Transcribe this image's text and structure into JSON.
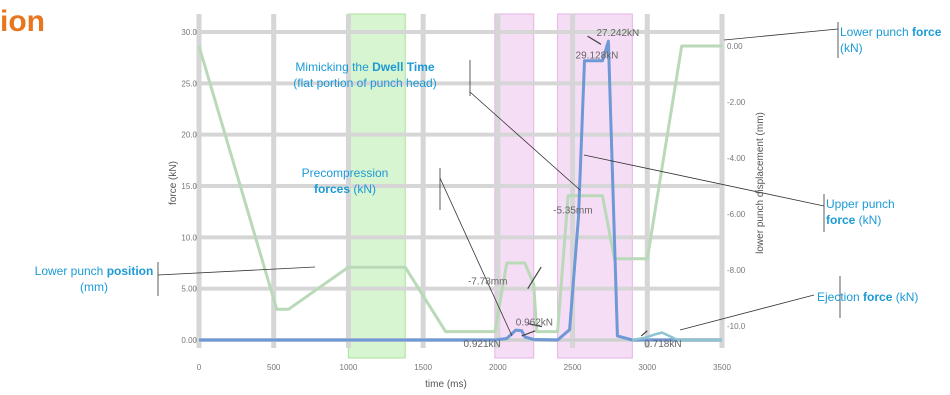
{
  "page": {
    "title_fragment": "ion"
  },
  "colors": {
    "title": "#e8761e",
    "callout_text": "#1b9ad6",
    "dwell_band": "#d7f5d0",
    "precomp_band": "#f6ddf6",
    "main_band": "#f6ddf6",
    "position_line": "#b9d9b8",
    "force_line": "#6f98d6",
    "ejection_line": "#8cc4cf",
    "grid": "#d6d6d6",
    "annotation": "#666666"
  },
  "chart_data": {
    "type": "line",
    "title": "",
    "xlabel": "time (ms)",
    "ylabel": "force (kN)",
    "ylabel_right": "lower punch displacement (mm)",
    "xlim": [
      0,
      3500
    ],
    "ylim": [
      0,
      30
    ],
    "ylim_right": [
      -10.5,
      0.5
    ],
    "x_ticks": [
      "0",
      "500",
      "1000",
      "1500",
      "2000",
      "2500",
      "3000",
      "3500"
    ],
    "y_ticks": [
      "0.00",
      "5.00",
      "10.0",
      "15.0",
      "20.0",
      "25.0",
      "30.0"
    ],
    "y_ticks_right": [
      "0.00",
      "-2.00",
      "-4.00",
      "-6.00",
      "-8.00",
      "-10.0"
    ],
    "bands": [
      {
        "from": 1000,
        "to": 1380,
        "color": "dwell"
      },
      {
        "from": 1980,
        "to": 2240,
        "color": "precomp"
      },
      {
        "from": 2400,
        "to": 2900,
        "color": "main"
      }
    ],
    "series": [
      {
        "key": "position",
        "axis": "right",
        "x": [
          0,
          520,
          600,
          1000,
          1380,
          1650,
          1980,
          2060,
          2100,
          2180,
          2240,
          2260,
          2400,
          2470,
          2700,
          2780,
          2900,
          3000,
          3230,
          3500,
          3600
        ],
        "y": [
          0.0,
          -9.4,
          -9.4,
          -7.9,
          -7.9,
          -10.2,
          -10.2,
          -7.75,
          -7.75,
          -7.75,
          -8.5,
          -10.2,
          -10.2,
          -5.35,
          -5.35,
          -7.6,
          -7.6,
          -7.6,
          0.0,
          0.0,
          0.0
        ]
      },
      {
        "key": "force",
        "axis": "left",
        "x": [
          0,
          1980,
          2060,
          2120,
          2160,
          2180,
          2240,
          2400,
          2480,
          2540,
          2580,
          2700,
          2740,
          2800,
          2900,
          3500,
          3600
        ],
        "y": [
          0,
          0,
          0.15,
          0.96,
          0.9,
          0.3,
          0.05,
          0,
          1.0,
          12.0,
          27.2,
          27.2,
          29.1,
          0.4,
          0,
          0,
          0
        ]
      },
      {
        "key": "ejection",
        "axis": "left",
        "x": [
          2900,
          2980,
          3050,
          3100,
          3160,
          3200,
          3500
        ],
        "y": [
          0,
          0.2,
          0.55,
          0.72,
          0.3,
          0,
          0
        ]
      }
    ],
    "annotations": [
      {
        "text": "27.242kN",
        "x": 2660,
        "y": 29.6
      },
      {
        "text": "29.128kN",
        "x": 2520,
        "y": 27.4
      },
      {
        "text": "-5.35mm",
        "x": 2370,
        "y": 12.3
      },
      {
        "text": "-7.78mm",
        "x": 1800,
        "y": 5.4
      },
      {
        "text": "0.962kN",
        "x": 2120,
        "y": 1.4
      },
      {
        "text": "0.921kN",
        "x": 1770,
        "y": -0.7
      },
      {
        "text": "0.718kN",
        "x": 2980,
        "y": -0.7
      }
    ]
  },
  "callouts": {
    "dwell": {
      "pre": "Mimicking the ",
      "bold": "Dwell Time",
      "line2": "(flat portion of punch head)"
    },
    "precomp": {
      "line1": "Precompression",
      "bold": "forces",
      "post": " (kN)"
    },
    "lower_force": {
      "pre": "Lower punch ",
      "bold": "force",
      "line2": "(kN)"
    },
    "upper_force": {
      "line1": "Upper punch",
      "bold": "force",
      "post": " (kN)"
    },
    "lower_position": {
      "pre": "Lower punch ",
      "bold": "position",
      "line2": "(mm)"
    },
    "ejection": {
      "pre": "Ejection ",
      "bold": "force",
      "post": " (kN)"
    }
  }
}
